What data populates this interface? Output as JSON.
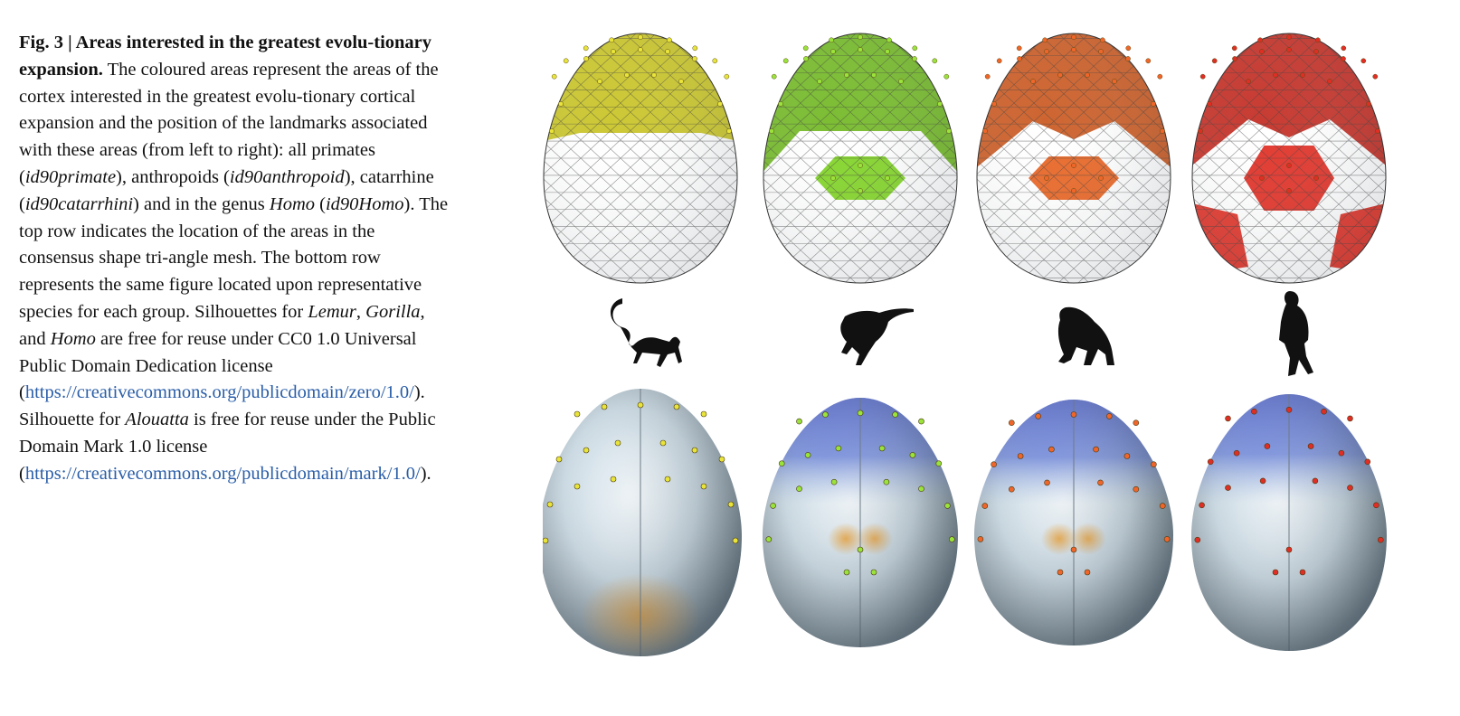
{
  "caption": {
    "fig_label": "Fig. 3 | Areas interested in the greatest evolu-tionary expansion.",
    "s1": " The coloured areas represent the areas of the cortex interested in the greatest evolu-tionary cortical expansion and the position of the landmarks associated with these areas (from left to right): all primates (",
    "t1": "id90primate",
    "s2": "), anthropoids (",
    "t2": "id90anthropoid",
    "s3": "), catarrhine (",
    "t3": "id90catarrhini",
    "s4": ") and in the genus ",
    "t4": "Homo",
    "s5": " (",
    "t5": "id90Homo",
    "s6": "). The top row indicates the location of the areas in the consensus shape tri-angle mesh. The bottom row represents the same figure located upon representative species for each group. Silhouettes for ",
    "t6": "Lemur",
    "s7": ", ",
    "t7": "Gorilla",
    "s8": ", and ",
    "t8": "Homo",
    "s9": " are free for reuse under CC0 1.0 Universal Public Domain Dedication license (",
    "link1": "https://creativecommons.org/publicdomain/zero/1.0/",
    "s10": "). Silhouette for ",
    "t9": "Alouatta",
    "s11": " is free for reuse under the Public Domain Mark 1.0 license (",
    "link2": "https://creativecommons.org/publicdomain/mark/1.0/",
    "s12": ")."
  },
  "panels": [
    {
      "group": "all primates",
      "area": "id90primate",
      "species": "Lemur",
      "color": "#e6e022",
      "landmark": "#e8e43a"
    },
    {
      "group": "anthropoids",
      "area": "id90anthropoid",
      "species": "Alouatta",
      "color": "#7ed321",
      "landmark": "#9ae33a"
    },
    {
      "group": "catarrhine",
      "area": "id90catarrhini",
      "species": "Gorilla",
      "color": "#e8611d",
      "landmark": "#f0662a"
    },
    {
      "group": "genus Homo",
      "area": "id90Homo",
      "species": "Homo",
      "color": "#df2a1f",
      "landmark": "#e02e24"
    }
  ]
}
